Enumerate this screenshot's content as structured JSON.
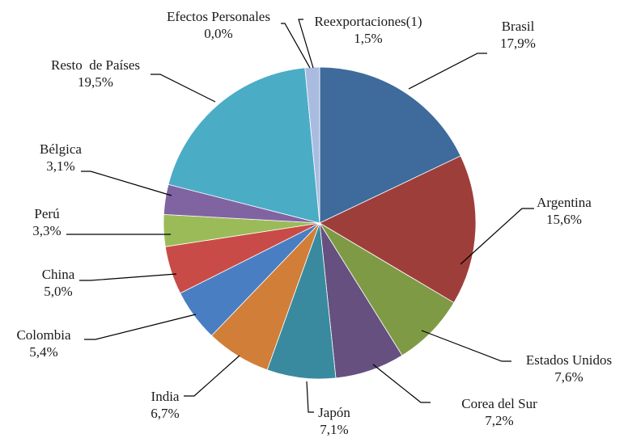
{
  "chart_data": {
    "type": "pie",
    "title": "",
    "start_angle_deg": 0,
    "direction": "clockwise",
    "legend": "none",
    "data_labels": "outside-with-leader-lines",
    "slices": [
      {
        "label": "Brasil",
        "value_label": "17,9%",
        "value": 17.9,
        "color": "#3E6B9C"
      },
      {
        "label": "Argentina",
        "value_label": "15,6%",
        "value": 15.6,
        "color": "#9E3E3B"
      },
      {
        "label": "Estados Unidos",
        "value_label": "7,6%",
        "value": 7.6,
        "color": "#7E9A45"
      },
      {
        "label": "Corea del Sur",
        "value_label": "7,2%",
        "value": 7.2,
        "color": "#65507F"
      },
      {
        "label": "Japón",
        "value_label": "7,1%",
        "value": 7.1,
        "color": "#398A9E"
      },
      {
        "label": "India",
        "value_label": "6,7%",
        "value": 6.7,
        "color": "#D17E39"
      },
      {
        "label": "Colombia",
        "value_label": "5,4%",
        "value": 5.4,
        "color": "#4A7EC2"
      },
      {
        "label": "China",
        "value_label": "5,0%",
        "value": 5.0,
        "color": "#C94B47"
      },
      {
        "label": "Perú",
        "value_label": "3,3%",
        "value": 3.3,
        "color": "#9BBB59"
      },
      {
        "label": "Bélgica",
        "value_label": "3,1%",
        "value": 3.1,
        "color": "#8064A2"
      },
      {
        "label": "Resto  de Países",
        "value_label": "19,5%",
        "value": 19.5,
        "color": "#4BACC6"
      },
      {
        "label": "Efectos Personales",
        "value_label": "0,0%",
        "value": 0.0,
        "color": "#F79646"
      },
      {
        "label": "Reexportaciones(1)",
        "value_label": "1,5%",
        "value": 1.5,
        "color": "#A9BCE0"
      }
    ]
  }
}
